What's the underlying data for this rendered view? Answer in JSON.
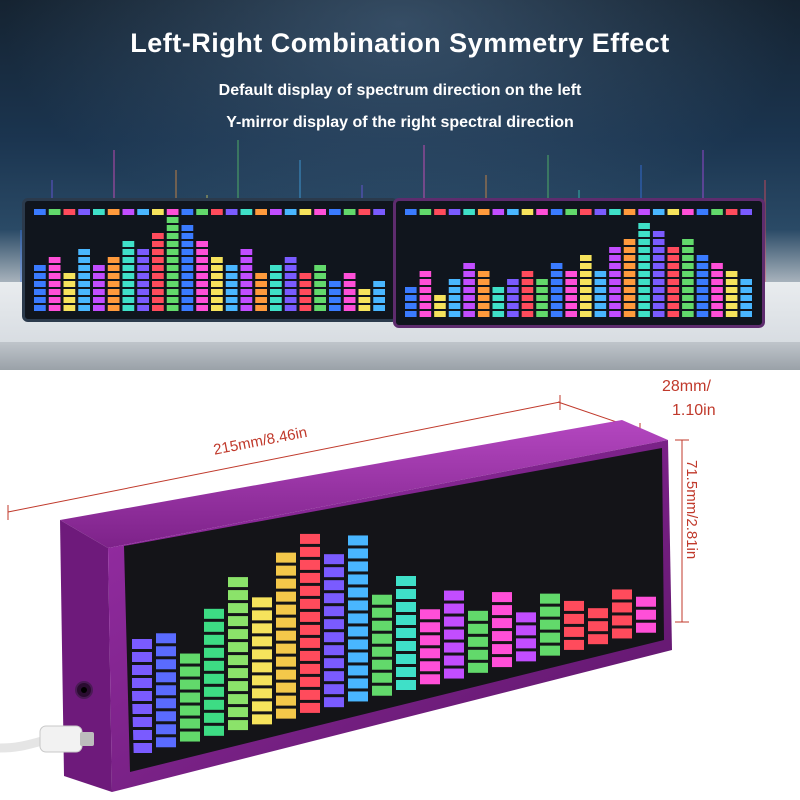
{
  "headline": "Left-Right Combination Symmetry Effect",
  "subline_1": "Default display of spectrum direction on the left",
  "subline_2": "Y-mirror display of the right spectral direction",
  "dimensions": {
    "length": "215mm/8.46in",
    "depth_1": "28mm/",
    "depth_2": "1.10in",
    "height": "71.5mm/2.81in"
  },
  "colors": {
    "accent_dimension": "#c0392b",
    "device_body": "#7a1f86",
    "spectrum": [
      "#3a7bff",
      "#7a5bff",
      "#c24dff",
      "#ff4fd8",
      "#ff4b5c",
      "#ff9a3c",
      "#f6e35c",
      "#62d96b",
      "#3fe0c8",
      "#49b6ff"
    ]
  },
  "cable_icon": "usb-c-cable-icon",
  "port_icon": "audio-jack-icon"
}
